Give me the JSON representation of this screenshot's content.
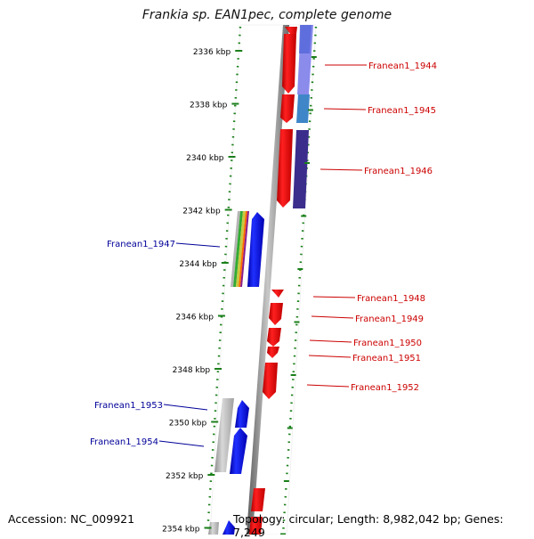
{
  "title": "Frankia sp. EAN1pec, complete genome",
  "accession": "Accession: NC_009921",
  "summary": "Topology: circular; Length: 8,982,042 bp; Genes: 7,249",
  "colors": {
    "forward": "#ff0000",
    "reverse": "#0000ff",
    "ruler": "#1a7f1a",
    "backbone": "#808080",
    "label_forward": "#cc0000",
    "label_reverse": "#000099"
  },
  "ruler_ticks": [
    "2336 kbp",
    "2338 kbp",
    "2340 kbp",
    "2342 kbp",
    "2344 kbp",
    "2346 kbp",
    "2348 kbp",
    "2350 kbp",
    "2352 kbp",
    "2354 kbp"
  ],
  "genes_forward": [
    {
      "label": "Franean1_1944"
    },
    {
      "label": "Franean1_1945"
    },
    {
      "label": "Franean1_1946"
    },
    {
      "label": "Franean1_1948"
    },
    {
      "label": "Franean1_1949"
    },
    {
      "label": "Franean1_1950"
    },
    {
      "label": "Franean1_1951"
    },
    {
      "label": "Franean1_1952"
    }
  ],
  "genes_reverse": [
    {
      "label": "Franean1_1947"
    },
    {
      "label": "Franean1_1953"
    },
    {
      "label": "Franean1_1954"
    }
  ]
}
